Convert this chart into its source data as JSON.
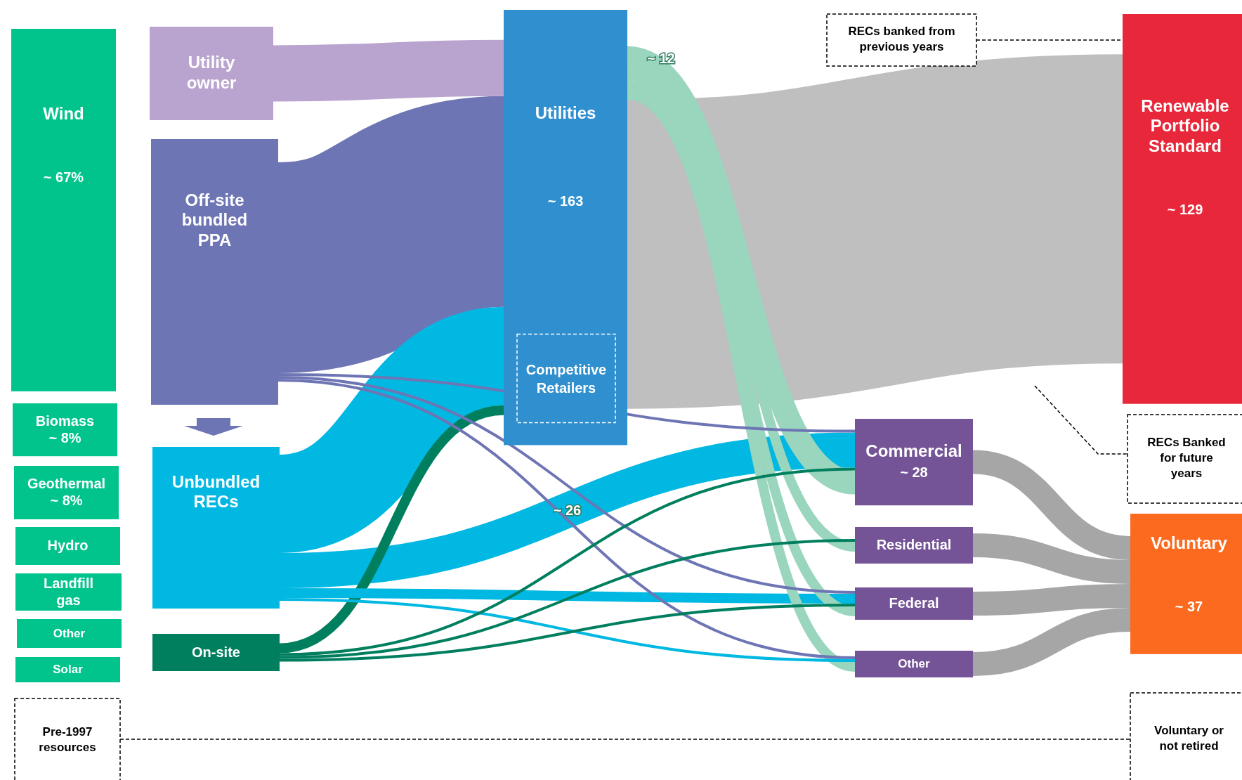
{
  "chart_data": {
    "type": "other",
    "categories": [
      "Wind",
      "Biomass",
      "Geothermal",
      "Hydro",
      "Landfill gas",
      "Other",
      "Solar",
      "Utility owner",
      "Off-site bundled PPA",
      "Unbundled RECs",
      "On-site",
      "Utilities",
      "Commercial",
      "Residential",
      "Federal",
      "Other",
      "Renewable Portfolio Standard",
      "Voluntary"
    ],
    "values": [
      67,
      8,
      8,
      null,
      null,
      null,
      null,
      null,
      null,
      null,
      null,
      163,
      28,
      null,
      null,
      null,
      129,
      37
    ],
    "value_labels": [
      "~ 67%",
      "~ 8%",
      "~ 8%",
      null,
      null,
      null,
      null,
      null,
      null,
      null,
      null,
      "~ 163",
      "~ 28",
      null,
      null,
      null,
      "~ 129",
      "~ 37"
    ],
    "colors": [
      "#00c48c",
      "#00c48c",
      "#00c48c",
      "#00c48c",
      "#00c48c",
      "#00c48c",
      "#00c48c",
      "#b9a3cf",
      "#6e75b4",
      "#00b8e2",
      "#007f5f",
      "#2f8fcf",
      "#745396",
      "#745396",
      "#745396",
      "#745396",
      "#e8283a",
      "#fb6a1f"
    ],
    "annotations": [
      "Competitive Retailers",
      "~ 12",
      "~ 26",
      "RECs banked from previous years",
      "RECs Banked for future years",
      "Pre-1997 resources",
      "Voluntary or not retired"
    ]
  }
}
